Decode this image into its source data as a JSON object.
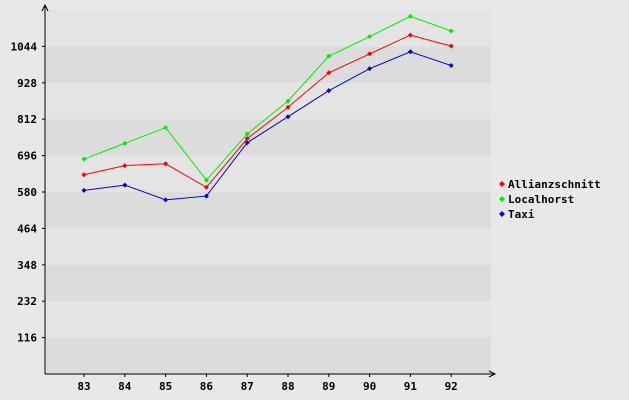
{
  "chart_data": {
    "type": "line",
    "title": "",
    "xlabel": "",
    "ylabel": "",
    "categories": [
      "83",
      "84",
      "85",
      "86",
      "87",
      "88",
      "89",
      "90",
      "91",
      "92"
    ],
    "yticks": [
      116,
      232,
      348,
      464,
      580,
      696,
      812,
      928,
      1044
    ],
    "ylim": [
      0,
      1160
    ],
    "grid": true,
    "legend_position": "right",
    "series": [
      {
        "name": "Allianzschnitt",
        "color": "#ff0000",
        "values": [
          635,
          664,
          670,
          595,
          750,
          850,
          960,
          1020,
          1080,
          1045
        ]
      },
      {
        "name": "Localhorst",
        "color": "#00ee00",
        "values": [
          685,
          735,
          785,
          618,
          765,
          870,
          1013,
          1075,
          1140,
          1093
        ]
      },
      {
        "name": "Taxi",
        "color": "#0000dd",
        "values": [
          585,
          602,
          555,
          567,
          737,
          820,
          903,
          973,
          1027,
          983
        ]
      }
    ]
  }
}
